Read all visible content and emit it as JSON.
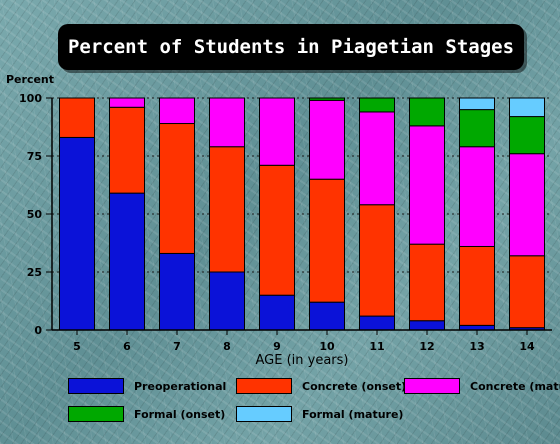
{
  "chart_data": {
    "type": "bar",
    "stacked": true,
    "title": "Percent of Students in Piagetian Stages",
    "ylabel": "Percent",
    "xlabel": "AGE (in years)",
    "ylim": [
      0,
      100
    ],
    "yticks": [
      0,
      25,
      50,
      75,
      100
    ],
    "grid": "horizontal dashed",
    "legend_position": "bottom",
    "categories": [
      "5",
      "6",
      "7",
      "8",
      "9",
      "10",
      "11",
      "12",
      "13",
      "14"
    ],
    "series": [
      {
        "name": "Preoperational",
        "color": "#0b12d8",
        "values": [
          83,
          59,
          33,
          25,
          15,
          12,
          6,
          4,
          2,
          1
        ]
      },
      {
        "name": "Concrete (onset)",
        "color": "#ff3300",
        "values": [
          17,
          37,
          56,
          54,
          56,
          53,
          48,
          33,
          34,
          31
        ]
      },
      {
        "name": "Concrete (mature)",
        "color": "#ff00ff",
        "values": [
          0,
          4,
          11,
          21,
          29,
          34,
          40,
          51,
          43,
          44
        ]
      },
      {
        "name": "Formal (onset)",
        "color": "#00a800",
        "values": [
          0,
          0,
          0,
          0,
          0,
          1,
          6,
          12,
          16,
          16
        ]
      },
      {
        "name": "Formal (mature)",
        "color": "#66ccff",
        "values": [
          0,
          0,
          0,
          0,
          0,
          0,
          0,
          0,
          5,
          8
        ]
      }
    ]
  }
}
